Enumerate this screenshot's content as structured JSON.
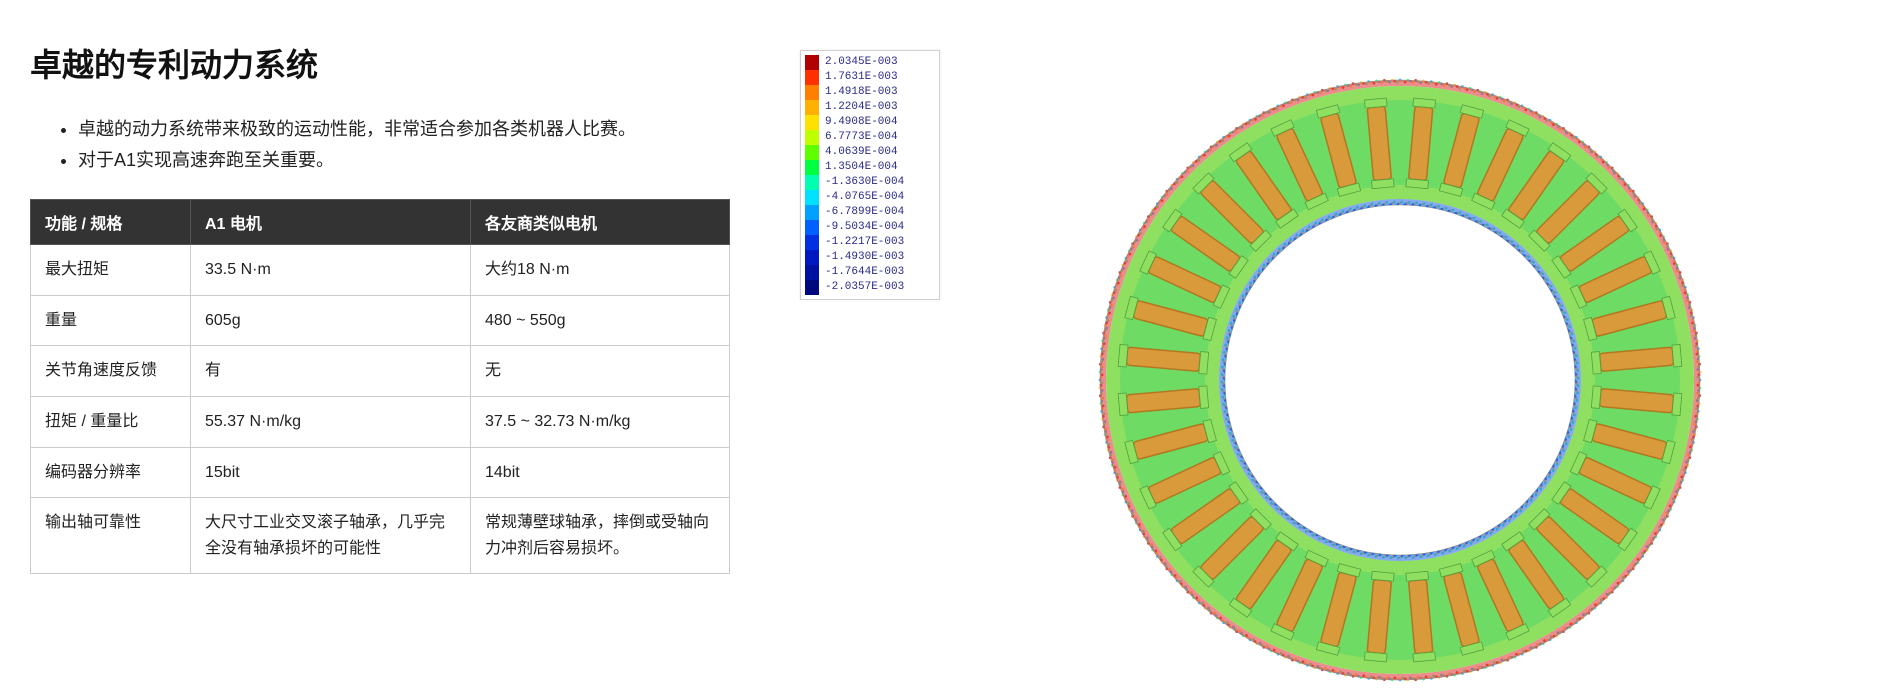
{
  "title": "卓越的专利动力系统",
  "bullets": [
    "卓越的动力系统带来极致的运动性能，非常适合参加各类机器人比赛。",
    "对于A1实现高速奔跑至关重要。"
  ],
  "table": {
    "columns": [
      "功能 / 规格",
      "A1 电机",
      "各友商类似电机"
    ],
    "rows": [
      [
        "最大扭矩",
        "33.5 N·m",
        "大约18 N·m"
      ],
      [
        "重量",
        "605g",
        "480 ~ 550g"
      ],
      [
        "关节角速度反馈",
        "有",
        "无"
      ],
      [
        "扭矩 / 重量比",
        "55.37 N·m/kg",
        "37.5 ~ 32.73 N·m/kg"
      ],
      [
        "编码器分辨率",
        "15bit",
        "14bit"
      ],
      [
        "输出轴可靠性",
        "大尺寸工业交叉滚子轴承，几乎完全没有轴承损坏的可能性",
        "常规薄壁球轴承，摔倒或受轴向力冲剂后容易损坏。"
      ]
    ],
    "header_bg": "#333333",
    "header_fg": "#ffffff",
    "border_color": "#cccccc"
  },
  "legend": {
    "values": [
      "2.0345E-003",
      "1.7631E-003",
      "1.4918E-003",
      "1.2204E-003",
      "9.4908E-004",
      "6.7773E-004",
      "4.0639E-004",
      "1.3504E-004",
      "-1.3630E-004",
      "-4.0765E-004",
      "-6.7899E-004",
      "-9.5034E-004",
      "-1.2217E-003",
      "-1.4930E-003",
      "-1.7644E-003",
      "-2.0357E-003"
    ],
    "colors": [
      "#b00000",
      "#ff3000",
      "#ff8000",
      "#ffb000",
      "#ffe000",
      "#c0ff00",
      "#60ff00",
      "#00ff40",
      "#00ffb0",
      "#00e0ff",
      "#00a0ff",
      "#0060ff",
      "#0030e0",
      "#0018c0",
      "#0010a0",
      "#000880"
    ],
    "font_color": "#2a2a8a",
    "box_border": "#d0d0d0"
  },
  "motor": {
    "type": "fea-ring-section",
    "slot_count": 36,
    "outer_radius": 300,
    "inner_radius": 175,
    "slot_outer": 280,
    "slot_inner": 195,
    "colors": {
      "coil_fill": "#d89a3a",
      "coil_stroke": "#b07820",
      "tooth_fill": "#8fe060",
      "gap_fill": "#30d070",
      "outer_edge": "#e04040",
      "rim_mix1": "#40c0ff",
      "rim_mix2": "#ffd040",
      "inner_edge": "#2060e0",
      "background": "#ffffff"
    }
  }
}
